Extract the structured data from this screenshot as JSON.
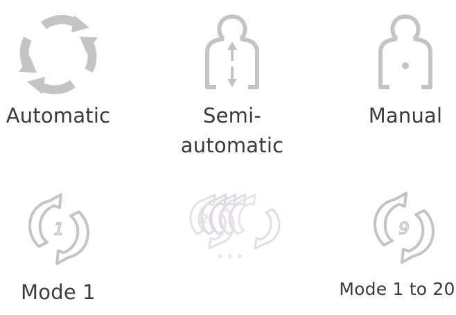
{
  "modes": {
    "automatic": {
      "label": "Automatic",
      "icon": "circular-arrows-icon"
    },
    "semi_automatic": {
      "label_line1": "Semi-",
      "label_line2": "automatic",
      "icon": "person-up-down-arrows-icon"
    },
    "manual": {
      "label": "Manual",
      "icon": "person-dot-icon"
    }
  },
  "programs": {
    "mode1": {
      "label": "Mode 1",
      "icon": "cycle-number-icon",
      "number": "1"
    },
    "mode_sequence": {
      "icon": "cycle-sequence-icon",
      "number": "2"
    },
    "mode1_to_20": {
      "label": "Mode 1 to 20",
      "icon": "cycle-number-icon",
      "number": "9"
    }
  },
  "colors": {
    "icon_gray": "#c4c4c4",
    "icon_light": "#e2dde6",
    "label_text": "#3a3a3a"
  }
}
